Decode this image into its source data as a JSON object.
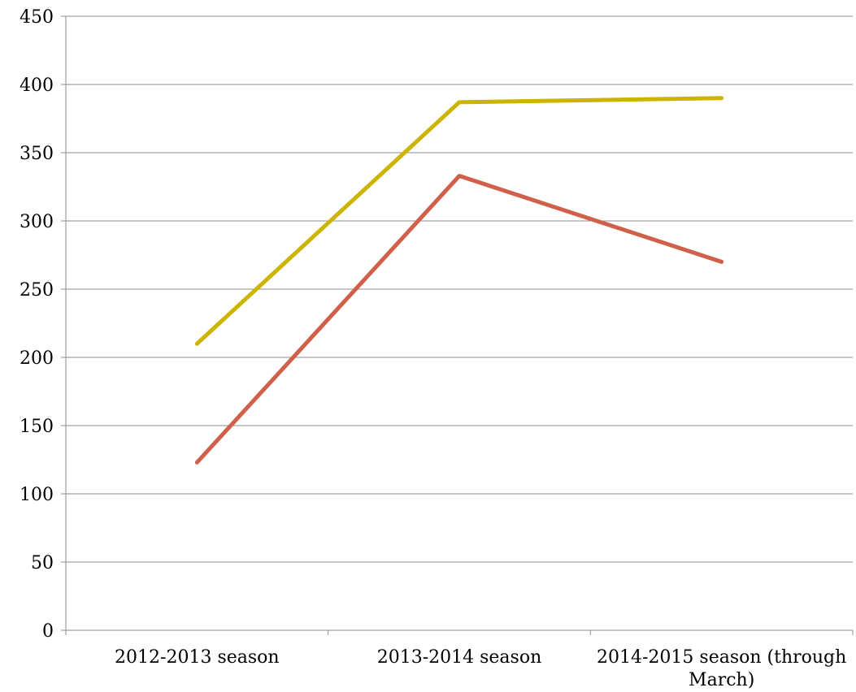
{
  "chart_data": {
    "type": "line",
    "title": "",
    "xlabel": "",
    "ylabel": "",
    "categories": [
      [
        "2012-2013 season"
      ],
      [
        "2013-2014 season"
      ],
      [
        "2014-2015 season (through",
        "March)"
      ]
    ],
    "ylim": [
      0,
      450
    ],
    "y_ticks": [
      0,
      50,
      100,
      150,
      200,
      250,
      300,
      350,
      400,
      450
    ],
    "grid": true,
    "legend": "none",
    "series": [
      {
        "values": [
          210,
          387,
          390
        ],
        "color": "#CCB400"
      },
      {
        "values": [
          123,
          333,
          270
        ],
        "color": "#D0604A"
      }
    ],
    "colors": {
      "gridline": "#8c8c8c",
      "axis": "#8c8c8c",
      "text": "#000000"
    }
  }
}
